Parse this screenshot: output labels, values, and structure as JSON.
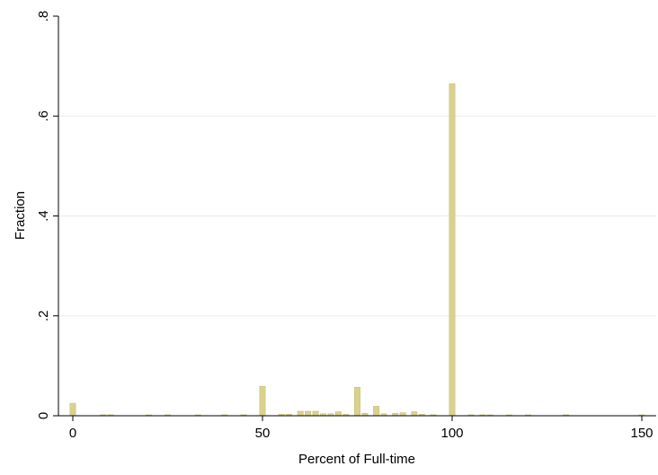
{
  "chart_data": {
    "type": "bar",
    "xlabel": "Percent of Full-time",
    "ylabel": "Fraction",
    "xlim": [
      0,
      150
    ],
    "ylim": [
      0,
      0.8
    ],
    "xticks": [
      {
        "value": 0,
        "label": "0"
      },
      {
        "value": 50,
        "label": "50"
      },
      {
        "value": 100,
        "label": "100"
      },
      {
        "value": 150,
        "label": "150"
      }
    ],
    "yticks": [
      {
        "value": 0,
        "label": "0"
      },
      {
        "value": 0.2,
        "label": ".2"
      },
      {
        "value": 0.4,
        "label": ".4"
      },
      {
        "value": 0.6,
        "label": ".6"
      },
      {
        "value": 0.8,
        "label": ".8"
      }
    ],
    "grid": true,
    "bar_color": "#d9d28e",
    "bin_width": 1.5,
    "bars": [
      {
        "x": 0,
        "y": 0.025
      },
      {
        "x": 8,
        "y": 0.002
      },
      {
        "x": 10,
        "y": 0.002
      },
      {
        "x": 20,
        "y": 0.001
      },
      {
        "x": 25,
        "y": 0.002
      },
      {
        "x": 33,
        "y": 0.001
      },
      {
        "x": 40,
        "y": 0.002
      },
      {
        "x": 45,
        "y": 0.002
      },
      {
        "x": 50,
        "y": 0.059
      },
      {
        "x": 55,
        "y": 0.003
      },
      {
        "x": 57,
        "y": 0.003
      },
      {
        "x": 60,
        "y": 0.009
      },
      {
        "x": 62,
        "y": 0.009
      },
      {
        "x": 64,
        "y": 0.009
      },
      {
        "x": 66,
        "y": 0.004
      },
      {
        "x": 68,
        "y": 0.004
      },
      {
        "x": 70,
        "y": 0.008
      },
      {
        "x": 72,
        "y": 0.003
      },
      {
        "x": 75,
        "y": 0.057
      },
      {
        "x": 77,
        "y": 0.005
      },
      {
        "x": 80,
        "y": 0.019
      },
      {
        "x": 82,
        "y": 0.004
      },
      {
        "x": 85,
        "y": 0.005
      },
      {
        "x": 87,
        "y": 0.006
      },
      {
        "x": 90,
        "y": 0.008
      },
      {
        "x": 92,
        "y": 0.003
      },
      {
        "x": 95,
        "y": 0.002
      },
      {
        "x": 100,
        "y": 0.665
      },
      {
        "x": 105,
        "y": 0.002
      },
      {
        "x": 108,
        "y": 0.002
      },
      {
        "x": 110,
        "y": 0.001
      },
      {
        "x": 115,
        "y": 0.001
      },
      {
        "x": 120,
        "y": 0.001
      },
      {
        "x": 130,
        "y": 0.002
      },
      {
        "x": 150,
        "y": 0.001
      }
    ]
  }
}
